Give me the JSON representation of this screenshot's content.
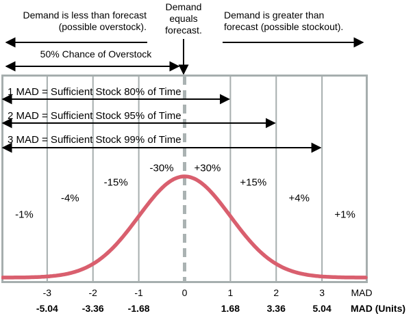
{
  "colors": {
    "curve": "#d95f6e",
    "grid": "#a6aeae",
    "dashed_center": "#aab2b2",
    "arrow": "#000000",
    "text": "#000000",
    "background": "#ffffff"
  },
  "top_annotations": {
    "less": {
      "lines": [
        "Demand is less than forecast",
        "(possible overstock)."
      ]
    },
    "equal": {
      "lines": [
        "Demand",
        "equals",
        "forecast."
      ]
    },
    "greater": {
      "lines": [
        "Demand is greater than",
        "forecast (possible stockout)."
      ]
    },
    "overstock_chance": "50% Chance of Overstock"
  },
  "mad_annotations": [
    {
      "label": "1 MAD = Sufficient Stock 80% of Time",
      "extent_mad": 1
    },
    {
      "label": "2 MAD = Sufficient Stock 95% of Time",
      "extent_mad": 2
    },
    {
      "label": "3 MAD = Sufficient Stock 99% of Time",
      "extent_mad": 3
    }
  ],
  "chart_data": {
    "type": "line",
    "description": "Normal distribution of demand forecast errors measured in MAD units",
    "x_range_mad": [
      -4,
      4
    ],
    "curve": {
      "shape": "normal",
      "mean_mad": 0,
      "sigma_mad": 1
    },
    "segments": [
      {
        "from_mad": -4,
        "to_mad": -3,
        "probability_label": "-1%"
      },
      {
        "from_mad": -3,
        "to_mad": -2,
        "probability_label": "-4%"
      },
      {
        "from_mad": -2,
        "to_mad": -1,
        "probability_label": "-15%"
      },
      {
        "from_mad": -1,
        "to_mad": 0,
        "probability_label": "-30%"
      },
      {
        "from_mad": 0,
        "to_mad": 1,
        "probability_label": "+30%"
      },
      {
        "from_mad": 1,
        "to_mad": 2,
        "probability_label": "+15%"
      },
      {
        "from_mad": 2,
        "to_mad": 3,
        "probability_label": "+4%"
      },
      {
        "from_mad": 3,
        "to_mad": 4,
        "probability_label": "+1%"
      }
    ],
    "x_axis": {
      "ticks": [
        {
          "mad": "-3",
          "units": "-5.04"
        },
        {
          "mad": "-2",
          "units": "-3.36"
        },
        {
          "mad": "-1",
          "units": "-1.68"
        },
        {
          "mad": "0",
          "units": ""
        },
        {
          "mad": "1",
          "units": "1.68"
        },
        {
          "mad": "2",
          "units": "3.36"
        },
        {
          "mad": "3",
          "units": "5.04"
        }
      ],
      "row1_unit_label": "MAD",
      "row2_unit_label": "MAD (Units)"
    }
  }
}
